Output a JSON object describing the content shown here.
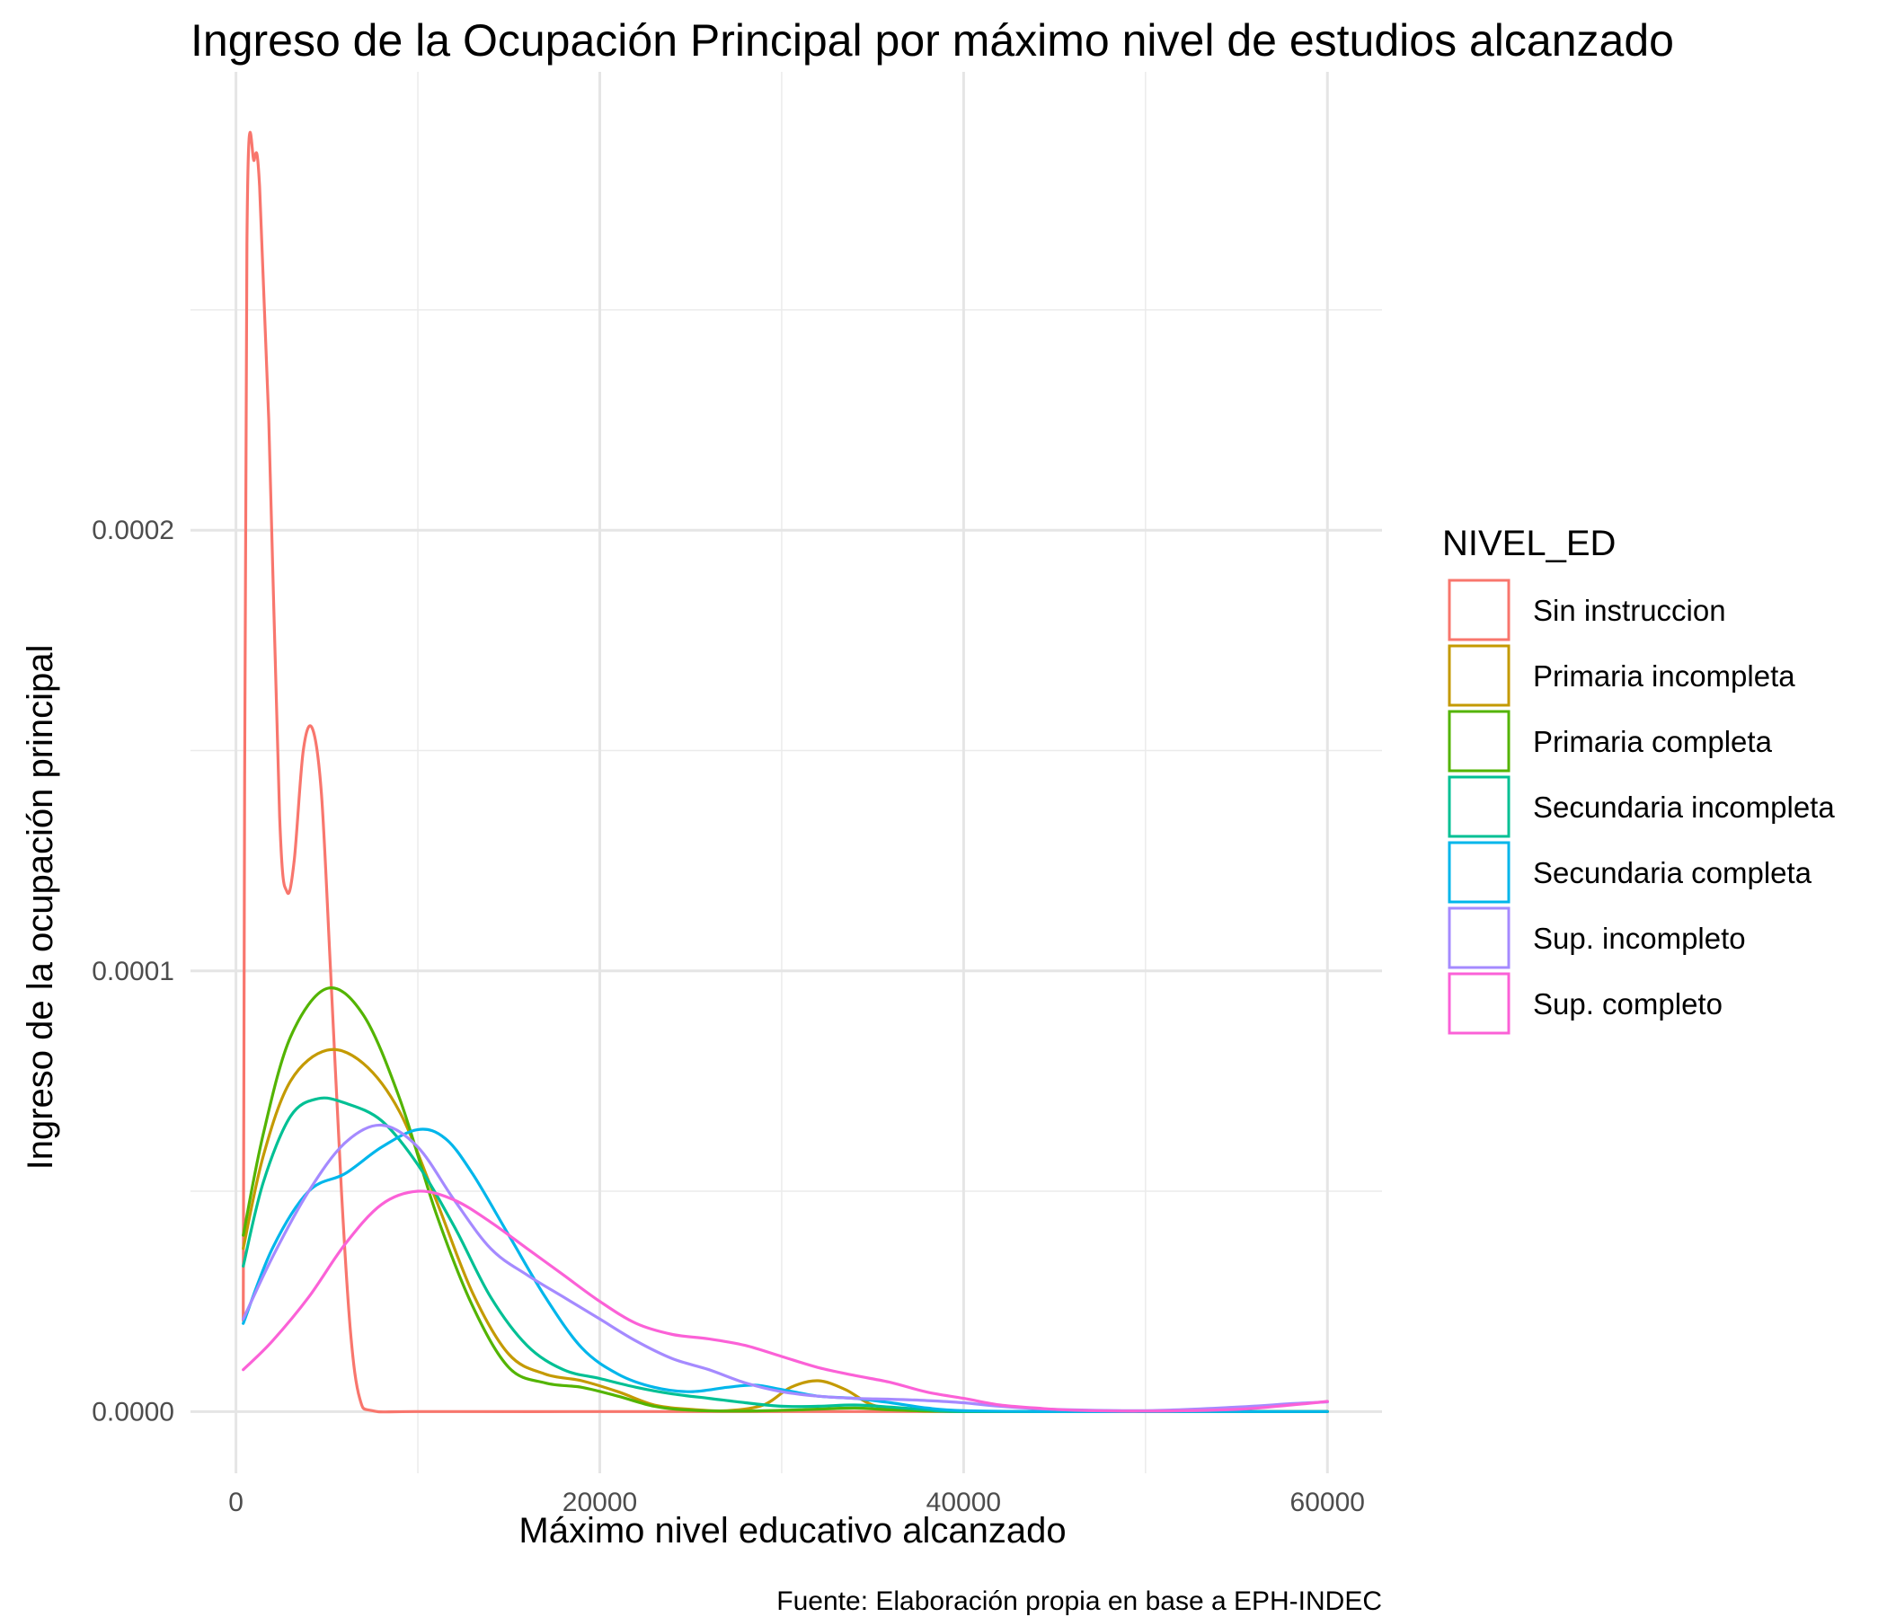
{
  "chart_data": {
    "type": "line",
    "title": "Ingreso de la Ocupación Principal por máximo nivel de estudios alcanzado",
    "xlabel": "Máximo nivel educativo alcanzado",
    "ylabel": "Ingreso de la ocupación principal",
    "caption": "Fuente: Elaboración propia en base a EPH-INDEC",
    "xlim": [
      -2500,
      63000
    ],
    "ylim": [
      -1.4e-05,
      0.000304
    ],
    "x_ticks": [
      0,
      20000,
      40000,
      60000
    ],
    "x_tick_labels": [
      "0",
      "20000",
      "40000",
      "60000"
    ],
    "y_ticks": [
      0,
      0.0001,
      0.0002
    ],
    "y_tick_labels": [
      "0.0000",
      "0.0001",
      "0.0002"
    ],
    "grid": true,
    "legend": {
      "title": "NIVEL_ED",
      "position": "right"
    },
    "series": [
      {
        "name": "Sin instruccion",
        "color": "#F8766D",
        "points": [
          [
            400,
            2.07e-05
          ],
          [
            600,
            0.000265
          ],
          [
            1000,
            0.000284
          ],
          [
            1300,
            0.000278
          ],
          [
            1800,
            0.000225
          ],
          [
            2400,
            0.000135
          ],
          [
            2800,
            0.000118
          ],
          [
            3200,
            0.000125
          ],
          [
            3700,
            0.00015
          ],
          [
            4200,
            0.000155
          ],
          [
            4700,
            0.00014
          ],
          [
            5200,
            0.0001
          ],
          [
            5800,
            5e-05
          ],
          [
            6300,
            1.8e-05
          ],
          [
            6800,
            3e-06
          ],
          [
            7500,
            2e-07
          ],
          [
            10000,
            0.0
          ],
          [
            20000,
            0.0
          ],
          [
            30000,
            0.0
          ],
          [
            40000,
            0.0
          ],
          [
            50000,
            0.0
          ],
          [
            60000,
            0.0
          ]
        ]
      },
      {
        "name": "Primaria incompleta",
        "color": "#C49A00",
        "points": [
          [
            400,
            3.7e-05
          ],
          [
            1500,
            5.8e-05
          ],
          [
            3000,
            7.5e-05
          ],
          [
            5000,
            8.2e-05
          ],
          [
            7000,
            7.9e-05
          ],
          [
            9000,
            6.8e-05
          ],
          [
            11000,
            4.8e-05
          ],
          [
            13000,
            2.7e-05
          ],
          [
            15000,
            1.3e-05
          ],
          [
            17000,
            8.5e-06
          ],
          [
            19000,
            7e-06
          ],
          [
            21000,
            4.5e-06
          ],
          [
            23000,
            1.5e-06
          ],
          [
            25000,
            5e-07
          ],
          [
            27000,
            2e-07
          ],
          [
            29000,
            1.5e-06
          ],
          [
            30500,
            5.5e-06
          ],
          [
            32000,
            7e-06
          ],
          [
            33500,
            5e-06
          ],
          [
            35000,
            1.5e-06
          ],
          [
            37000,
            3e-07
          ],
          [
            40000,
            0.0
          ],
          [
            50000,
            0.0
          ],
          [
            60000,
            0.0
          ]
        ]
      },
      {
        "name": "Primaria completa",
        "color": "#53B400",
        "points": [
          [
            400,
            4e-05
          ],
          [
            1500,
            6.3e-05
          ],
          [
            3000,
            8.5e-05
          ],
          [
            5000,
            9.6e-05
          ],
          [
            7000,
            9e-05
          ],
          [
            9000,
            7.1e-05
          ],
          [
            11000,
            4.5e-05
          ],
          [
            13000,
            2.4e-05
          ],
          [
            15000,
            1e-05
          ],
          [
            17000,
            6.5e-06
          ],
          [
            19000,
            5.5e-06
          ],
          [
            21000,
            3.5e-06
          ],
          [
            23000,
            1.2e-06
          ],
          [
            25000,
            3e-07
          ],
          [
            28000,
            1e-07
          ],
          [
            31000,
            4e-07
          ],
          [
            34000,
            8e-07
          ],
          [
            36000,
            4e-07
          ],
          [
            40000,
            0.0
          ],
          [
            50000,
            0.0
          ],
          [
            60000,
            0.0
          ]
        ]
      },
      {
        "name": "Secundaria incompleta",
        "color": "#00C094",
        "points": [
          [
            400,
            3.3e-05
          ],
          [
            1500,
            5.2e-05
          ],
          [
            3000,
            6.7e-05
          ],
          [
            4500,
            7.1e-05
          ],
          [
            6000,
            7e-05
          ],
          [
            8000,
            6.6e-05
          ],
          [
            10000,
            5.6e-05
          ],
          [
            12000,
            4.2e-05
          ],
          [
            14000,
            2.6e-05
          ],
          [
            16000,
            1.5e-05
          ],
          [
            18000,
            9.5e-06
          ],
          [
            20000,
            7.5e-06
          ],
          [
            22000,
            5.5e-06
          ],
          [
            24000,
            4e-06
          ],
          [
            26000,
            3e-06
          ],
          [
            28000,
            2e-06
          ],
          [
            30000,
            1.2e-06
          ],
          [
            32000,
            1.2e-06
          ],
          [
            34000,
            1.5e-06
          ],
          [
            36000,
            1e-06
          ],
          [
            38000,
            4e-07
          ],
          [
            40000,
            0.0
          ],
          [
            50000,
            0.0
          ],
          [
            60000,
            0.0
          ]
        ]
      },
      {
        "name": "Secundaria completa",
        "color": "#00B6EB",
        "points": [
          [
            400,
            2e-05
          ],
          [
            2000,
            3.7e-05
          ],
          [
            4000,
            5e-05
          ],
          [
            6000,
            5.4e-05
          ],
          [
            8000,
            6e-05
          ],
          [
            10000,
            6.4e-05
          ],
          [
            11500,
            6.2e-05
          ],
          [
            13000,
            5.4e-05
          ],
          [
            15000,
            4e-05
          ],
          [
            17000,
            2.6e-05
          ],
          [
            19000,
            1.45e-05
          ],
          [
            21000,
            8.5e-06
          ],
          [
            23000,
            5.5e-06
          ],
          [
            25000,
            4.5e-06
          ],
          [
            27000,
            5.5e-06
          ],
          [
            28500,
            6e-06
          ],
          [
            30000,
            5e-06
          ],
          [
            32000,
            3.5e-06
          ],
          [
            34000,
            3e-06
          ],
          [
            36000,
            2e-06
          ],
          [
            38000,
            8e-07
          ],
          [
            40000,
            2e-07
          ],
          [
            45000,
            0.0
          ],
          [
            50000,
            0.0
          ],
          [
            55000,
            0.0
          ],
          [
            60000,
            0.0
          ]
        ]
      },
      {
        "name": "Sup. incompleto",
        "color": "#A58AFF",
        "points": [
          [
            400,
            2.1e-05
          ],
          [
            2000,
            3.5e-05
          ],
          [
            4000,
            5e-05
          ],
          [
            6000,
            6.1e-05
          ],
          [
            8000,
            6.5e-05
          ],
          [
            10000,
            6e-05
          ],
          [
            12000,
            4.8e-05
          ],
          [
            14000,
            3.7e-05
          ],
          [
            16000,
            3.1e-05
          ],
          [
            18000,
            2.6e-05
          ],
          [
            20000,
            2.1e-05
          ],
          [
            22000,
            1.6e-05
          ],
          [
            24000,
            1.2e-05
          ],
          [
            26000,
            9.5e-06
          ],
          [
            28000,
            6.5e-06
          ],
          [
            30000,
            4.5e-06
          ],
          [
            32000,
            3.5e-06
          ],
          [
            34000,
            3e-06
          ],
          [
            36000,
            2.8e-06
          ],
          [
            38000,
            2.5e-06
          ],
          [
            40000,
            2e-06
          ],
          [
            42000,
            1.2e-06
          ],
          [
            45000,
            5e-07
          ],
          [
            50000,
            2e-07
          ],
          [
            55000,
            1e-06
          ],
          [
            58000,
            1.8e-06
          ],
          [
            60000,
            2.2e-06
          ]
        ]
      },
      {
        "name": "Sup. completo",
        "color": "#FB61D7",
        "points": [
          [
            400,
            9.5e-06
          ],
          [
            2000,
            1.6e-05
          ],
          [
            4000,
            2.6e-05
          ],
          [
            6000,
            3.8e-05
          ],
          [
            8000,
            4.7e-05
          ],
          [
            10000,
            5e-05
          ],
          [
            12000,
            4.8e-05
          ],
          [
            14000,
            4.3e-05
          ],
          [
            16000,
            3.7e-05
          ],
          [
            18000,
            3.1e-05
          ],
          [
            20000,
            2.5e-05
          ],
          [
            22000,
            2e-05
          ],
          [
            24000,
            1.75e-05
          ],
          [
            26000,
            1.65e-05
          ],
          [
            28000,
            1.5e-05
          ],
          [
            30000,
            1.25e-05
          ],
          [
            32000,
            1e-05
          ],
          [
            34000,
            8.2e-06
          ],
          [
            36000,
            6.6e-06
          ],
          [
            38000,
            4.4e-06
          ],
          [
            40000,
            3e-06
          ],
          [
            42000,
            1.5e-06
          ],
          [
            44000,
            8e-07
          ],
          [
            46000,
            3e-07
          ],
          [
            50000,
            1e-07
          ],
          [
            55000,
            5e-07
          ],
          [
            58000,
            1.5e-06
          ],
          [
            60000,
            2.3e-06
          ]
        ]
      }
    ]
  }
}
